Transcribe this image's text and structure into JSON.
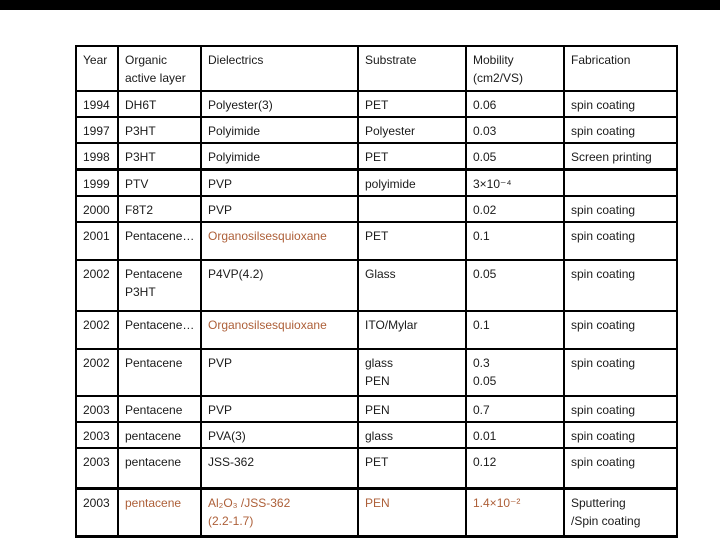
{
  "slide": {
    "background": "#ffffff",
    "top_bar_color": "#000000"
  },
  "table": {
    "accent_color": "#ad5f38",
    "text_color": "#1a1a1a",
    "border_color": "#000000",
    "headers": [
      "Year",
      "Organic\nactive layer",
      "Dielectrics",
      "Substrate",
      "Mobility\n(cm2/VS)",
      "Fabrication"
    ],
    "rows": [
      {
        "cells": [
          {
            "text": "1994"
          },
          {
            "text": "DH6T"
          },
          {
            "text": "Polyester(3)"
          },
          {
            "text": "PET"
          },
          {
            "text": "0.06"
          },
          {
            "text": "spin coating"
          }
        ]
      },
      {
        "cells": [
          {
            "text": "1997"
          },
          {
            "text": "P3HT"
          },
          {
            "text": "Polyimide"
          },
          {
            "text": "Polyester"
          },
          {
            "text": "0.03"
          },
          {
            "text": "spin coating"
          }
        ]
      },
      {
        "cells": [
          {
            "text": "1998"
          },
          {
            "text": "P3HT"
          },
          {
            "text": "Polyimide"
          },
          {
            "text": "PET"
          },
          {
            "text": "0.05"
          },
          {
            "text": "Screen printing"
          }
        ]
      },
      {
        "cells": [
          {
            "text": "1999"
          },
          {
            "text": "PTV"
          },
          {
            "text": "PVP"
          },
          {
            "text": "polyimide"
          },
          {
            "text": "3×10⁻⁴"
          },
          {
            "text": ""
          }
        ]
      },
      {
        "cells": [
          {
            "text": "2000"
          },
          {
            "text": "F8T2"
          },
          {
            "text": "PVP"
          },
          {
            "text": ""
          },
          {
            "text": "0.02"
          },
          {
            "text": "spin coating"
          }
        ]
      },
      {
        "cells": [
          {
            "text": "2001"
          },
          {
            "text": "Pentacene…"
          },
          {
            "text": "Organosilsesquioxane",
            "accent": true
          },
          {
            "text": "PET"
          },
          {
            "text": "0.1"
          },
          {
            "text": "spin coating"
          }
        ]
      },
      {
        "cells": [
          {
            "text": "2002"
          },
          {
            "text": "Pentacene\nP3HT"
          },
          {
            "text": "P4VP(4.2)"
          },
          {
            "text": "Glass"
          },
          {
            "text": "0.05"
          },
          {
            "text": "spin coating"
          }
        ]
      },
      {
        "cells": [
          {
            "text": "2002"
          },
          {
            "text": "Pentacene…"
          },
          {
            "text": "Organosilsesquioxane",
            "accent": true
          },
          {
            "text": "ITO/Mylar"
          },
          {
            "text": "0.1"
          },
          {
            "text": "spin coating"
          }
        ]
      },
      {
        "cells": [
          {
            "text": "2002"
          },
          {
            "text": "Pentacene"
          },
          {
            "text": "PVP"
          },
          {
            "text": "glass\nPEN"
          },
          {
            "text": "0.3\n0.05"
          },
          {
            "text": "spin coating"
          }
        ]
      },
      {
        "cells": [
          {
            "text": "2003"
          },
          {
            "text": "Pentacene"
          },
          {
            "text": "PVP"
          },
          {
            "text": "PEN"
          },
          {
            "text": "0.7"
          },
          {
            "text": "spin coating"
          }
        ]
      },
      {
        "cells": [
          {
            "text": "2003"
          },
          {
            "text": "pentacene"
          },
          {
            "text": "PVA(3)"
          },
          {
            "text": "glass"
          },
          {
            "text": "0.01"
          },
          {
            "text": "spin coating"
          }
        ]
      },
      {
        "cells": [
          {
            "text": "2003"
          },
          {
            "text": "pentacene"
          },
          {
            "text": "JSS-362"
          },
          {
            "text": "PET"
          },
          {
            "text": "0.12"
          },
          {
            "text": "spin coating"
          }
        ]
      },
      {
        "cells": [
          {
            "text": "2003"
          },
          {
            "text": "pentacene",
            "accent": true
          },
          {
            "text": "Al₂O₃ /JSS-362\n(2.2-1.7)",
            "accent": true
          },
          {
            "text": "PEN",
            "accent": true
          },
          {
            "text": "1.4×10⁻²",
            "accent": true
          },
          {
            "text": "Sputtering\n/Spin coating"
          }
        ]
      }
    ]
  }
}
